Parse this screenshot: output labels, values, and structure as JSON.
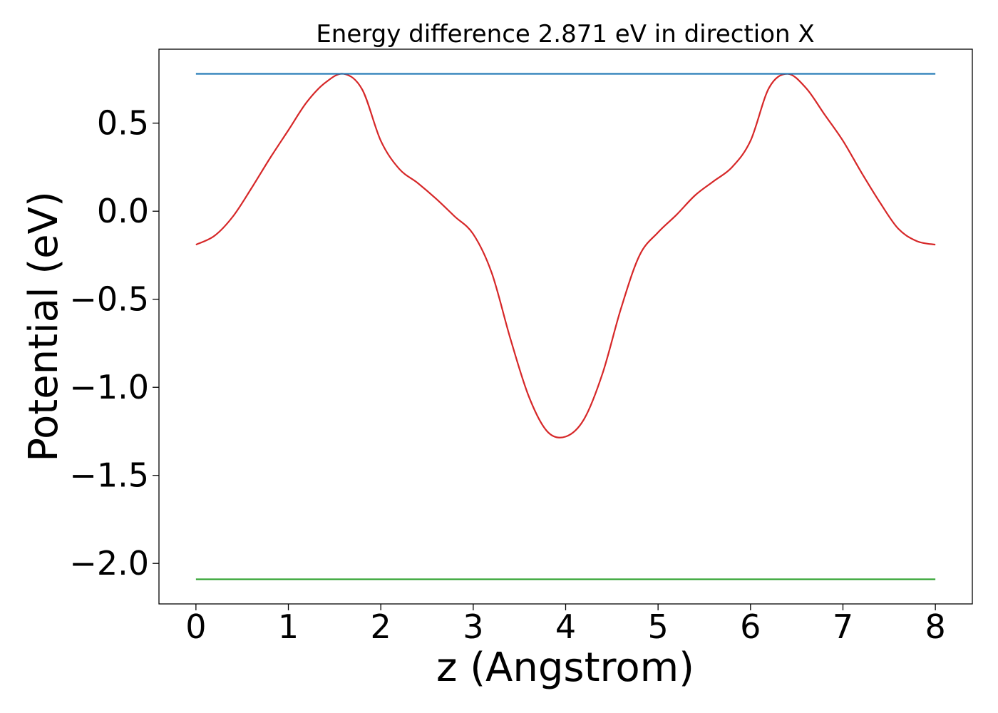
{
  "chart_data": {
    "type": "line",
    "title": "Energy difference 2.871 eV in direction X",
    "xlabel": "z (Angstrom)",
    "ylabel": "Potential (eV)",
    "xlim": [
      -0.4,
      8.4
    ],
    "ylim": [
      -2.23,
      0.92
    ],
    "xticks": [
      0,
      1,
      2,
      3,
      4,
      5,
      6,
      7,
      8
    ],
    "xtick_labels": [
      "0",
      "1",
      "2",
      "3",
      "4",
      "5",
      "6",
      "7",
      "8"
    ],
    "yticks": [
      0.5,
      0.0,
      -0.5,
      -1.0,
      -1.5,
      -2.0
    ],
    "ytick_labels": [
      "0.5",
      "0.0",
      "−0.5",
      "−1.0",
      "−1.5",
      "−2.0"
    ],
    "grid": false,
    "legend": "none",
    "series": [
      {
        "color": "#d62728",
        "x": [
          0.0,
          0.2,
          0.4,
          0.6,
          0.8,
          1.0,
          1.2,
          1.4,
          1.6,
          1.8,
          2.0,
          2.2,
          2.4,
          2.6,
          2.8,
          3.0,
          3.2,
          3.4,
          3.6,
          3.8,
          4.0,
          4.2,
          4.4,
          4.6,
          4.8,
          5.0,
          5.2,
          5.4,
          5.6,
          5.8,
          6.0,
          6.2,
          6.4,
          6.6,
          6.8,
          7.0,
          7.2,
          7.4,
          7.6,
          7.8,
          8.0
        ],
        "y": [
          -0.19,
          -0.14,
          -0.03,
          0.13,
          0.3,
          0.46,
          0.62,
          0.73,
          0.78,
          0.69,
          0.4,
          0.24,
          0.16,
          0.07,
          -0.03,
          -0.13,
          -0.35,
          -0.72,
          -1.05,
          -1.25,
          -1.28,
          -1.18,
          -0.92,
          -0.55,
          -0.25,
          -0.12,
          -0.02,
          0.09,
          0.17,
          0.25,
          0.4,
          0.7,
          0.78,
          0.7,
          0.55,
          0.4,
          0.22,
          0.05,
          -0.1,
          -0.17,
          -0.19
        ]
      },
      {
        "color": "#1f77b4",
        "x": [
          0.0,
          8.0
        ],
        "y": [
          0.78,
          0.78
        ]
      },
      {
        "color": "#2ca02c",
        "x": [
          0.0,
          8.0
        ],
        "y": [
          -2.09,
          -2.09
        ]
      }
    ]
  }
}
